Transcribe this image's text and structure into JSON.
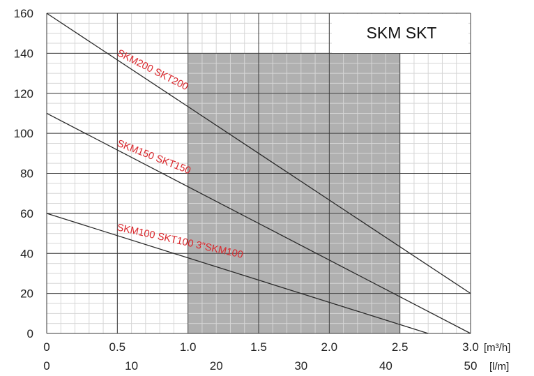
{
  "chart_data": {
    "type": "line",
    "title": "SKM SKT",
    "x_m3h": {
      "ticks": [
        "0",
        "0.5",
        "1.0",
        "1.5",
        "2.0",
        "2.5",
        "3.0"
      ],
      "values": [
        0,
        0.5,
        1.0,
        1.5,
        2.0,
        2.5,
        3.0
      ],
      "unit": "[m³/h]",
      "range": [
        0,
        3.0
      ]
    },
    "x_lm": {
      "ticks": [
        "0",
        "10",
        "20",
        "30",
        "40",
        "50"
      ],
      "values": [
        0,
        10,
        20,
        30,
        40,
        50
      ],
      "unit": "[l/m]"
    },
    "y": {
      "ticks": [
        "0",
        "20",
        "40",
        "60",
        "80",
        "100",
        "120",
        "140",
        "160"
      ],
      "values": [
        0,
        20,
        40,
        60,
        80,
        100,
        120,
        140,
        160
      ],
      "range": [
        0,
        160
      ]
    },
    "grid": true,
    "shaded_region": {
      "x": [
        1.0,
        2.5
      ],
      "y": [
        0,
        140
      ],
      "color": "#b0b0b0"
    },
    "series": [
      {
        "name": "SKM200 SKT200",
        "x": [
          0,
          3.0
        ],
        "y": [
          160,
          20
        ]
      },
      {
        "name": "SKM150 SKT150",
        "x": [
          0,
          3.0
        ],
        "y": [
          110,
          0
        ]
      },
      {
        "name": "SKM100 SKT100   3\"SKM100",
        "x": [
          0,
          2.7
        ],
        "y": [
          60,
          0
        ]
      }
    ],
    "colors": {
      "curve": "#2a2a2a",
      "label": "#d9262b",
      "grid_major": "#3a3a3a",
      "grid_minor": "#d6d6d6"
    }
  }
}
